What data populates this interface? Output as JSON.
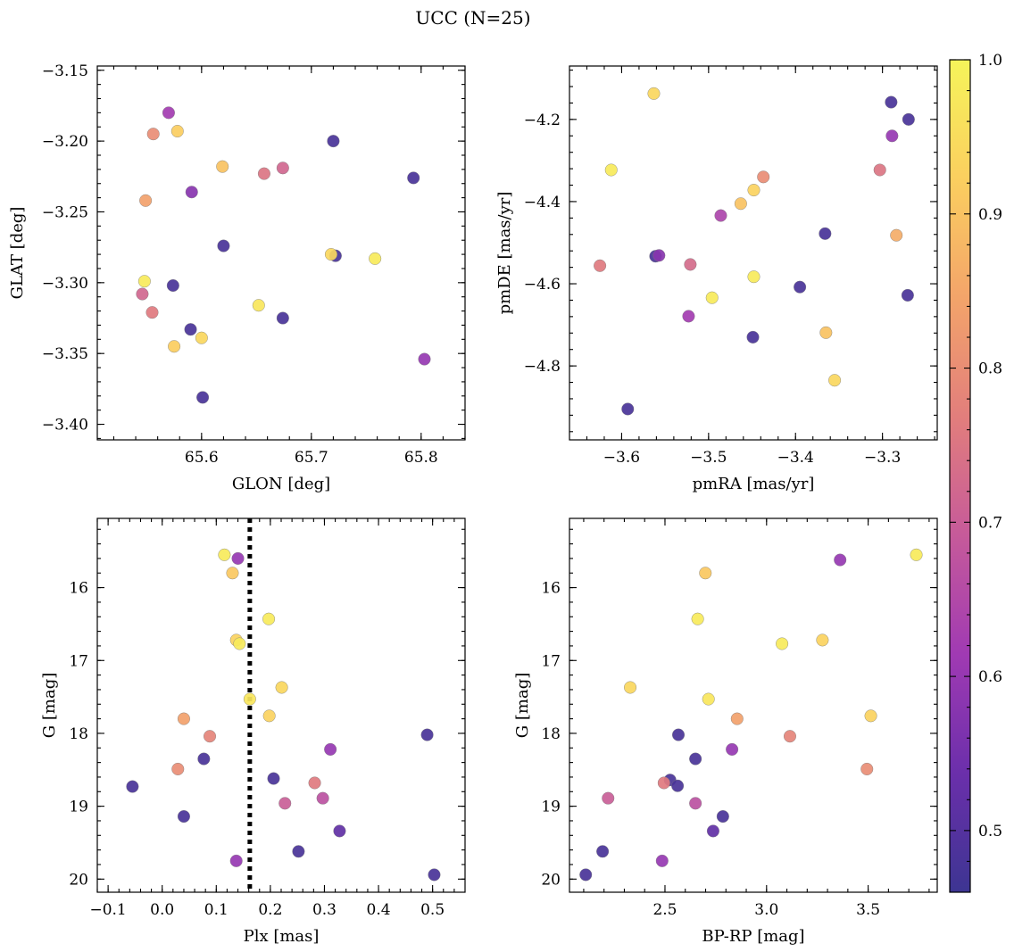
{
  "figure": {
    "title": "UCC (N=25)"
  },
  "colorbar": {
    "range": [
      0.46,
      1.0
    ],
    "ticks": [
      0.5,
      0.6,
      0.7,
      0.8,
      0.9,
      1.0
    ],
    "tick_labels": [
      "0.5",
      "0.6",
      "0.7",
      "0.8",
      "0.9",
      "1.0"
    ],
    "colormap": "plasma",
    "colors": [
      "#3d3592",
      "#6b2fab",
      "#a03ab3",
      "#c65a9a",
      "#e27e7c",
      "#f3a46a",
      "#fbcf5f",
      "#f6f45a"
    ]
  },
  "chart_data": [
    {
      "type": "scatter",
      "xlabel": "GLON [deg]",
      "ylabel": "GLAT [deg]",
      "xlim": [
        65.505,
        65.84
      ],
      "ylim": [
        -3.411,
        -3.147
      ],
      "xticks": [
        65.6,
        65.7,
        65.8
      ],
      "xtick_labels": [
        "65.6",
        "65.7",
        "65.8"
      ],
      "yticks": [
        -3.4,
        -3.35,
        -3.3,
        -3.25,
        -3.2,
        -3.15
      ],
      "ytick_labels": [
        "−3.40",
        "−3.35",
        "−3.30",
        "−3.25",
        "−3.20",
        "−3.15"
      ],
      "y_inverted": false,
      "points": [
        {
          "x": 65.57,
          "y": -3.18,
          "c": 0.62
        },
        {
          "x": 65.556,
          "y": -3.195,
          "c": 0.8
        },
        {
          "x": 65.578,
          "y": -3.193,
          "c": 0.92
        },
        {
          "x": 65.72,
          "y": -3.2,
          "c": 0.48
        },
        {
          "x": 65.619,
          "y": -3.218,
          "c": 0.9
        },
        {
          "x": 65.657,
          "y": -3.223,
          "c": 0.75
        },
        {
          "x": 65.674,
          "y": -3.219,
          "c": 0.72
        },
        {
          "x": 65.793,
          "y": -3.226,
          "c": 0.48
        },
        {
          "x": 65.591,
          "y": -3.236,
          "c": 0.58
        },
        {
          "x": 65.549,
          "y": -3.242,
          "c": 0.84
        },
        {
          "x": 65.62,
          "y": -3.274,
          "c": 0.48
        },
        {
          "x": 65.722,
          "y": -3.281,
          "c": 0.48
        },
        {
          "x": 65.718,
          "y": -3.28,
          "c": 0.94
        },
        {
          "x": 65.758,
          "y": -3.283,
          "c": 0.98
        },
        {
          "x": 65.548,
          "y": -3.299,
          "c": 0.98
        },
        {
          "x": 65.574,
          "y": -3.302,
          "c": 0.48
        },
        {
          "x": 65.546,
          "y": -3.308,
          "c": 0.72
        },
        {
          "x": 65.652,
          "y": -3.316,
          "c": 0.97
        },
        {
          "x": 65.555,
          "y": -3.321,
          "c": 0.76
        },
        {
          "x": 65.674,
          "y": -3.325,
          "c": 0.48
        },
        {
          "x": 65.59,
          "y": -3.333,
          "c": 0.48
        },
        {
          "x": 65.6,
          "y": -3.339,
          "c": 0.94
        },
        {
          "x": 65.575,
          "y": -3.345,
          "c": 0.92
        },
        {
          "x": 65.803,
          "y": -3.354,
          "c": 0.6
        },
        {
          "x": 65.601,
          "y": -3.381,
          "c": 0.48
        }
      ]
    },
    {
      "type": "scatter",
      "xlabel": "pmRA [mas/yr]",
      "ylabel": "pmDE [mas/yr]",
      "xlim": [
        -3.66,
        -3.237
      ],
      "ylim": [
        -4.98,
        -4.07
      ],
      "xticks": [
        -3.6,
        -3.5,
        -3.4,
        -3.3
      ],
      "xtick_labels": [
        "−3.6",
        "−3.5",
        "−3.4",
        "−3.3"
      ],
      "yticks": [
        -4.8,
        -4.6,
        -4.4,
        -4.2
      ],
      "ytick_labels": [
        "−4.8",
        "−4.6",
        "−4.4",
        "−4.2"
      ],
      "y_inverted": false,
      "points": [
        {
          "x": -3.563,
          "y": -4.137,
          "c": 0.94
        },
        {
          "x": -3.29,
          "y": -4.158,
          "c": 0.48
        },
        {
          "x": -3.27,
          "y": -4.2,
          "c": 0.48
        },
        {
          "x": -3.289,
          "y": -4.24,
          "c": 0.6
        },
        {
          "x": -3.612,
          "y": -4.323,
          "c": 0.98
        },
        {
          "x": -3.303,
          "y": -4.323,
          "c": 0.75
        },
        {
          "x": -3.437,
          "y": -4.34,
          "c": 0.8
        },
        {
          "x": -3.448,
          "y": -4.372,
          "c": 0.93
        },
        {
          "x": -3.463,
          "y": -4.405,
          "c": 0.9
        },
        {
          "x": -3.486,
          "y": -4.434,
          "c": 0.64
        },
        {
          "x": -3.366,
          "y": -4.478,
          "c": 0.48
        },
        {
          "x": -3.284,
          "y": -4.482,
          "c": 0.86
        },
        {
          "x": -3.561,
          "y": -4.533,
          "c": 0.48
        },
        {
          "x": -3.557,
          "y": -4.531,
          "c": 0.58
        },
        {
          "x": -3.625,
          "y": -4.556,
          "c": 0.76
        },
        {
          "x": -3.521,
          "y": -4.553,
          "c": 0.73
        },
        {
          "x": -3.448,
          "y": -4.583,
          "c": 0.98
        },
        {
          "x": -3.395,
          "y": -4.608,
          "c": 0.48
        },
        {
          "x": -3.271,
          "y": -4.628,
          "c": 0.48
        },
        {
          "x": -3.496,
          "y": -4.634,
          "c": 0.98
        },
        {
          "x": -3.523,
          "y": -4.679,
          "c": 0.62
        },
        {
          "x": -3.365,
          "y": -4.719,
          "c": 0.9
        },
        {
          "x": -3.449,
          "y": -4.73,
          "c": 0.48
        },
        {
          "x": -3.355,
          "y": -4.835,
          "c": 0.94
        },
        {
          "x": -3.593,
          "y": -4.905,
          "c": 0.48
        }
      ]
    },
    {
      "type": "scatter",
      "xlabel": "Plx [mas]",
      "ylabel": "G [mag]",
      "xlim": [
        -0.12,
        0.56
      ],
      "ylim": [
        15.05,
        20.18
      ],
      "xticks": [
        -0.1,
        0.0,
        0.1,
        0.2,
        0.3,
        0.4,
        0.5
      ],
      "xtick_labels": [
        "−0.1",
        "0.0",
        "0.1",
        "0.2",
        "0.3",
        "0.4",
        "0.5"
      ],
      "yticks": [
        16,
        17,
        18,
        19,
        20
      ],
      "ytick_labels": [
        "16",
        "17",
        "18",
        "19",
        "20"
      ],
      "y_inverted": true,
      "vline": 0.162,
      "points": [
        {
          "x": 0.115,
          "y": 15.55,
          "c": 0.98
        },
        {
          "x": 0.14,
          "y": 15.6,
          "c": 0.6
        },
        {
          "x": 0.13,
          "y": 15.8,
          "c": 0.91
        },
        {
          "x": 0.197,
          "y": 16.43,
          "c": 0.98
        },
        {
          "x": 0.137,
          "y": 16.72,
          "c": 0.93
        },
        {
          "x": 0.143,
          "y": 16.77,
          "c": 0.98
        },
        {
          "x": 0.221,
          "y": 17.37,
          "c": 0.94
        },
        {
          "x": 0.162,
          "y": 17.53,
          "c": 0.97
        },
        {
          "x": 0.04,
          "y": 17.8,
          "c": 0.84
        },
        {
          "x": 0.198,
          "y": 17.76,
          "c": 0.93
        },
        {
          "x": 0.088,
          "y": 18.04,
          "c": 0.78
        },
        {
          "x": 0.49,
          "y": 18.02,
          "c": 0.48
        },
        {
          "x": 0.311,
          "y": 18.22,
          "c": 0.6
        },
        {
          "x": 0.077,
          "y": 18.35,
          "c": 0.48
        },
        {
          "x": 0.029,
          "y": 18.49,
          "c": 0.8
        },
        {
          "x": 0.206,
          "y": 18.62,
          "c": 0.48
        },
        {
          "x": 0.282,
          "y": 18.68,
          "c": 0.76
        },
        {
          "x": -0.055,
          "y": 18.73,
          "c": 0.48
        },
        {
          "x": 0.297,
          "y": 18.89,
          "c": 0.67
        },
        {
          "x": 0.227,
          "y": 18.96,
          "c": 0.7
        },
        {
          "x": 0.04,
          "y": 19.14,
          "c": 0.48
        },
        {
          "x": 0.328,
          "y": 19.34,
          "c": 0.52
        },
        {
          "x": 0.252,
          "y": 19.62,
          "c": 0.48
        },
        {
          "x": 0.137,
          "y": 19.75,
          "c": 0.6
        },
        {
          "x": 0.503,
          "y": 19.94,
          "c": 0.48
        }
      ]
    },
    {
      "type": "scatter",
      "xlabel": "BP-RP [mag]",
      "ylabel": "G [mag]",
      "xlim": [
        2.03,
        3.84
      ],
      "ylim": [
        15.05,
        20.18
      ],
      "xticks": [
        2.5,
        3.0,
        3.5
      ],
      "xtick_labels": [
        "2.5",
        "3.0",
        "3.5"
      ],
      "yticks": [
        16,
        17,
        18,
        19,
        20
      ],
      "ytick_labels": [
        "16",
        "17",
        "18",
        "19",
        "20"
      ],
      "y_inverted": true,
      "points": [
        {
          "x": 3.737,
          "y": 15.55,
          "c": 0.98
        },
        {
          "x": 3.362,
          "y": 15.62,
          "c": 0.6
        },
        {
          "x": 2.699,
          "y": 15.8,
          "c": 0.91
        },
        {
          "x": 2.661,
          "y": 16.43,
          "c": 0.98
        },
        {
          "x": 3.275,
          "y": 16.72,
          "c": 0.93
        },
        {
          "x": 3.076,
          "y": 16.77,
          "c": 0.98
        },
        {
          "x": 2.329,
          "y": 17.37,
          "c": 0.94
        },
        {
          "x": 2.714,
          "y": 17.53,
          "c": 0.97
        },
        {
          "x": 3.513,
          "y": 17.76,
          "c": 0.93
        },
        {
          "x": 2.855,
          "y": 17.8,
          "c": 0.84
        },
        {
          "x": 2.566,
          "y": 18.02,
          "c": 0.48
        },
        {
          "x": 3.115,
          "y": 18.04,
          "c": 0.78
        },
        {
          "x": 2.83,
          "y": 18.22,
          "c": 0.6
        },
        {
          "x": 2.65,
          "y": 18.35,
          "c": 0.48
        },
        {
          "x": 3.494,
          "y": 18.49,
          "c": 0.8
        },
        {
          "x": 2.525,
          "y": 18.64,
          "c": 0.48
        },
        {
          "x": 2.495,
          "y": 18.68,
          "c": 0.76
        },
        {
          "x": 2.562,
          "y": 18.72,
          "c": 0.48
        },
        {
          "x": 2.22,
          "y": 18.89,
          "c": 0.7
        },
        {
          "x": 2.65,
          "y": 18.96,
          "c": 0.67
        },
        {
          "x": 2.785,
          "y": 19.14,
          "c": 0.48
        },
        {
          "x": 2.737,
          "y": 19.34,
          "c": 0.52
        },
        {
          "x": 2.193,
          "y": 19.62,
          "c": 0.48
        },
        {
          "x": 2.486,
          "y": 19.75,
          "c": 0.6
        },
        {
          "x": 2.11,
          "y": 19.94,
          "c": 0.48
        }
      ]
    }
  ]
}
